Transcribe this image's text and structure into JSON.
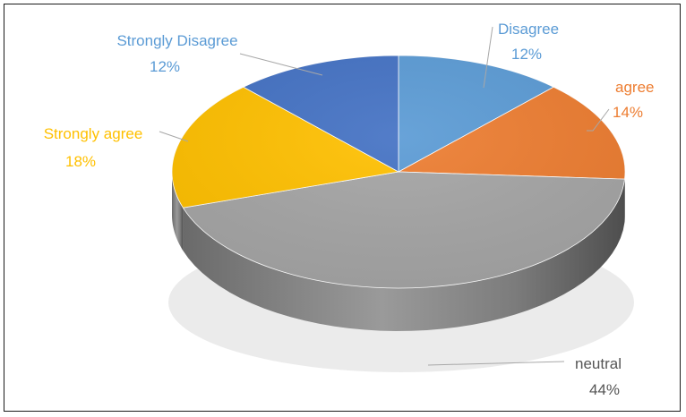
{
  "chart_data": {
    "type": "pie",
    "style": "3d",
    "slices": [
      {
        "label": "Disagree",
        "percent_label": "12%",
        "value": 12,
        "color": "#5B9BD5"
      },
      {
        "label": "agree",
        "percent_label": "14%",
        "value": 14,
        "color": "#ED7D31"
      },
      {
        "label": "neutral",
        "percent_label": "44%",
        "value": 44,
        "color": "#A5A5A5"
      },
      {
        "label": "Strongly agree",
        "percent_label": "18%",
        "value": 18,
        "color": "#FFC000"
      },
      {
        "label": "Strongly Disagree",
        "percent_label": "12%",
        "value": 12,
        "color": "#4472C4"
      }
    ]
  }
}
